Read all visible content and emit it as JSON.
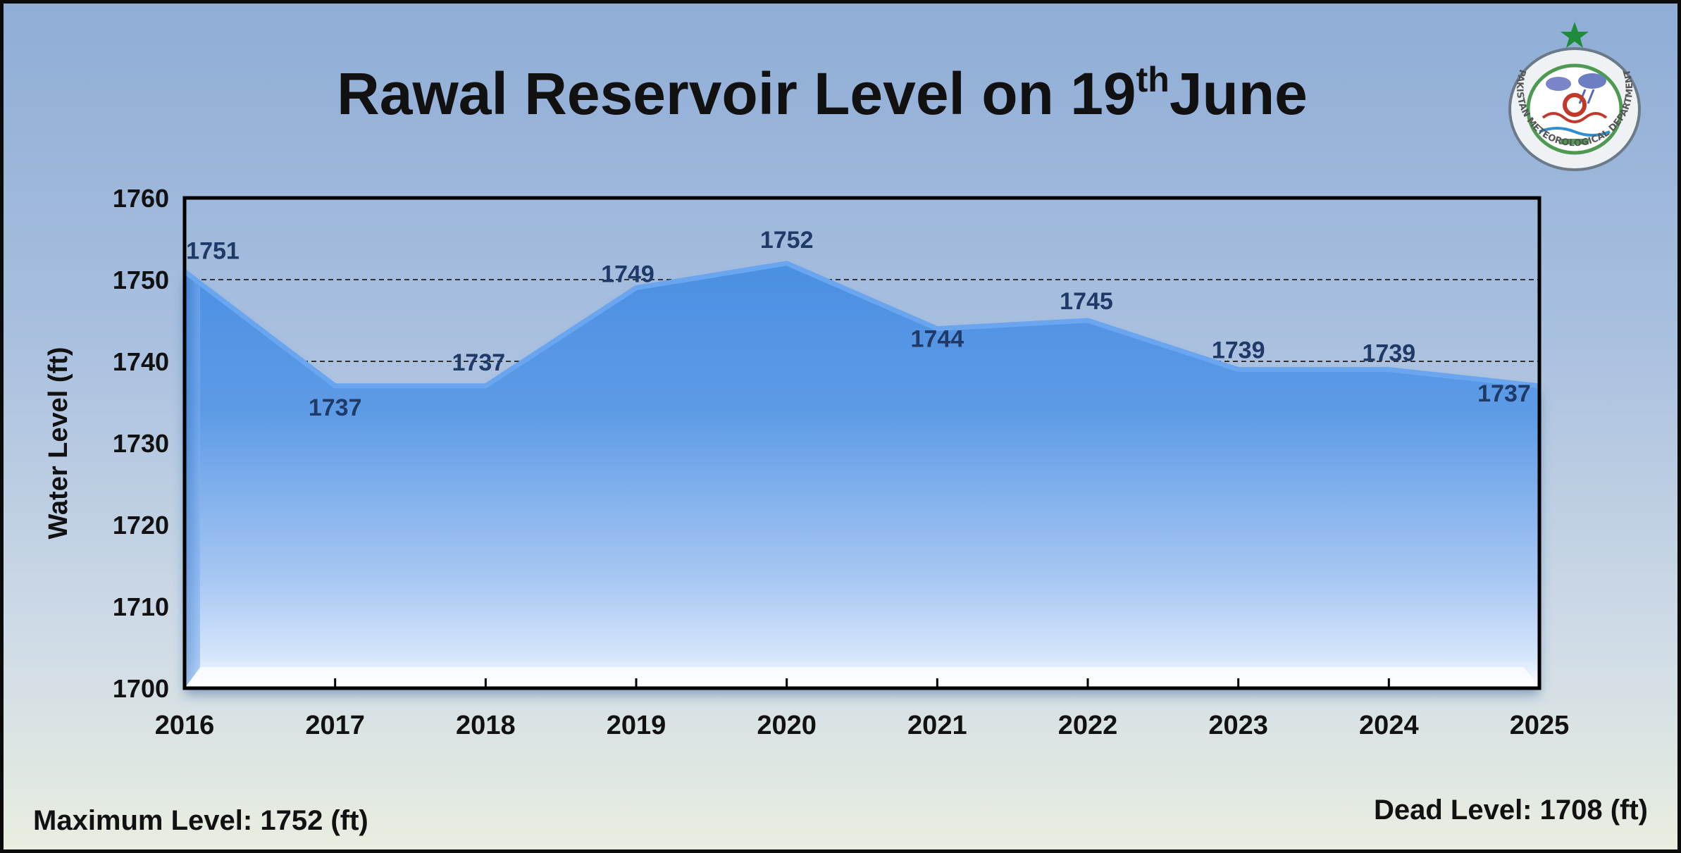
{
  "title": {
    "main": "Rawal Reservoir Level on 19",
    "superscript": "th",
    "suffix": "June"
  },
  "logo": {
    "name": "pakistan-meteorological-department-seal",
    "text": "PAKISTAN METEOROLOGICAL DEPARTMENT"
  },
  "footer": {
    "max_level": "Maximum Level: 1752 (ft)",
    "dead_level": "Dead Level: 1708 (ft)"
  },
  "chart_data": {
    "type": "area",
    "x": [
      "2016",
      "2017",
      "2018",
      "2019",
      "2020",
      "2021",
      "2022",
      "2023",
      "2024",
      "2025"
    ],
    "values": [
      1751,
      1737,
      1737,
      1749,
      1752,
      1744,
      1745,
      1739,
      1739,
      1737
    ],
    "data_labels": [
      "1751",
      "1737",
      "1737",
      "1749",
      "1752",
      "1744",
      "1745",
      "1739",
      "1739",
      "1737"
    ],
    "ylabel": "Water Level (ft)",
    "xlabel": "",
    "ylim": [
      1700,
      1760
    ],
    "yticks": [
      1700,
      1710,
      1720,
      1730,
      1740,
      1750,
      1760
    ],
    "reference_lines": [
      1740,
      1750
    ],
    "colors": {
      "area_top": "#4a8ee0",
      "area_bottom": "#ffffff",
      "line": "#6aa5ef",
      "label": "#1f3a66",
      "grid": "#333333"
    }
  }
}
